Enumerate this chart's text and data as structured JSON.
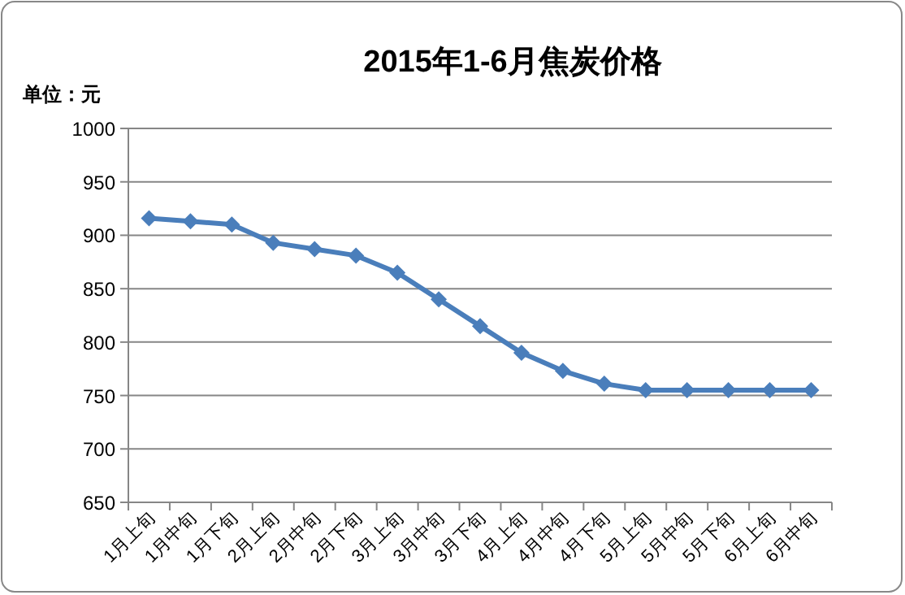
{
  "chart_data": {
    "type": "line",
    "title": "2015年1-6月焦炭价格",
    "ylabel": "单位：元",
    "categories": [
      "1月上旬",
      "1月中旬",
      "1月下旬",
      "2月上旬",
      "2月中旬",
      "2月下旬",
      "3月上旬",
      "3月中旬",
      "3月下旬",
      "4月上旬",
      "4月中旬",
      "4月下旬",
      "5月上旬",
      "5月中旬",
      "5月下旬",
      "6月上旬",
      "6月中旬"
    ],
    "series": [
      {
        "color": "#4a7ebb",
        "values": [
          916,
          913,
          910,
          893,
          887,
          881,
          865,
          840,
          815,
          790,
          773,
          761,
          755,
          755,
          755,
          755,
          755
        ]
      }
    ],
    "ylim": [
      650,
      1000
    ],
    "yticks": [
      650,
      700,
      750,
      800,
      850,
      900,
      950,
      1000
    ],
    "grid": "y",
    "marker": "diamond",
    "line_style": "solid"
  }
}
